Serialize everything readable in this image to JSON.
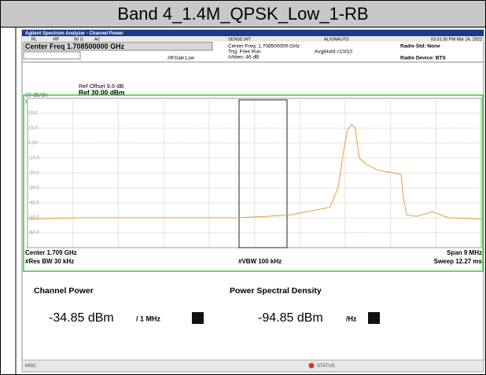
{
  "title": "Band 4_1.4M_QPSK_Low_1-RB",
  "header": {
    "app": "Agilent Spectrum Analyzer - Channel Power",
    "status_row": [
      "RL",
      "RF",
      "50 Ω",
      "AC",
      "SENSE:INT",
      "ALIGNAUTO",
      "03:31:35 PM Mar 24, 2022"
    ],
    "center_freq": "Center Freq 1.708500000 GHz",
    "settings": [
      "Center Freq: 1.708500000 GHz",
      "Trig: Free Run",
      "#Atten: 46 dB"
    ],
    "avg": "Avg|Hold:>10/10",
    "if_gain": "#IFGain:Low",
    "radio_std": "Radio Std: None",
    "radio_device": "Radio Device: BTS"
  },
  "plot": {
    "ref_offset": "Ref Offset 9.6 dB",
    "ref": "Ref 30.00 dBm",
    "scale": "10 dB/div",
    "scale_type": "Log"
  },
  "chart_data": {
    "type": "line",
    "x": [
      1704.5,
      1705.51,
      1707.07,
      1708.63,
      1709.26,
      1709.73,
      1710.19,
      1710.5,
      1710.66,
      1710.77,
      1710.85,
      1710.93,
      1711.0,
      1711.08,
      1711.21,
      1711.44,
      1711.75,
      1711.91,
      1711.96,
      1712.02,
      1712.22,
      1712.53,
      1712.85,
      1713.5
    ],
    "series": [
      {
        "color": "#e0a030",
        "values": [
          -51,
          -50,
          -50,
          -50,
          -49,
          -48,
          -45,
          -43,
          -30,
          -5,
          9,
          12.5,
          10,
          -10,
          -14,
          -18,
          -20,
          -21,
          -38,
          -48,
          -49,
          -46,
          -50,
          -51
        ]
      }
    ],
    "xlim": [
      1704.5,
      1713.5
    ],
    "ylim": [
      -70,
      30
    ],
    "yticks": [
      {
        "value": 20,
        "label": "20.0"
      },
      {
        "value": 10,
        "label": "10.0"
      },
      {
        "value": 0,
        "label": "0.00"
      },
      {
        "value": -10,
        "label": "-10.0"
      },
      {
        "value": -20,
        "label": "-20.0"
      },
      {
        "value": -30,
        "label": "-30.0"
      },
      {
        "value": -40,
        "label": "-40.0"
      },
      {
        "value": -50,
        "label": "-50.0"
      },
      {
        "value": -60,
        "label": "-60.0"
      }
    ],
    "grid": true
  },
  "footer": {
    "center": "Center 1.709 GHz",
    "res_bw": "#Res BW 30 kHz",
    "vbw": "#VBW 100 kHz",
    "span": "Span 9 MHz",
    "sweep": "Sweep 12.27 ms"
  },
  "results": [
    {
      "label": "Channel Power",
      "value": "-34.85 dBm",
      "unit": "/ 1 MHz"
    },
    {
      "label": "Power Spectral Density",
      "value": "-94.85 dBm",
      "unit": "/Hz"
    }
  ],
  "status": {
    "msg": "MSG",
    "status": "STATUS"
  }
}
